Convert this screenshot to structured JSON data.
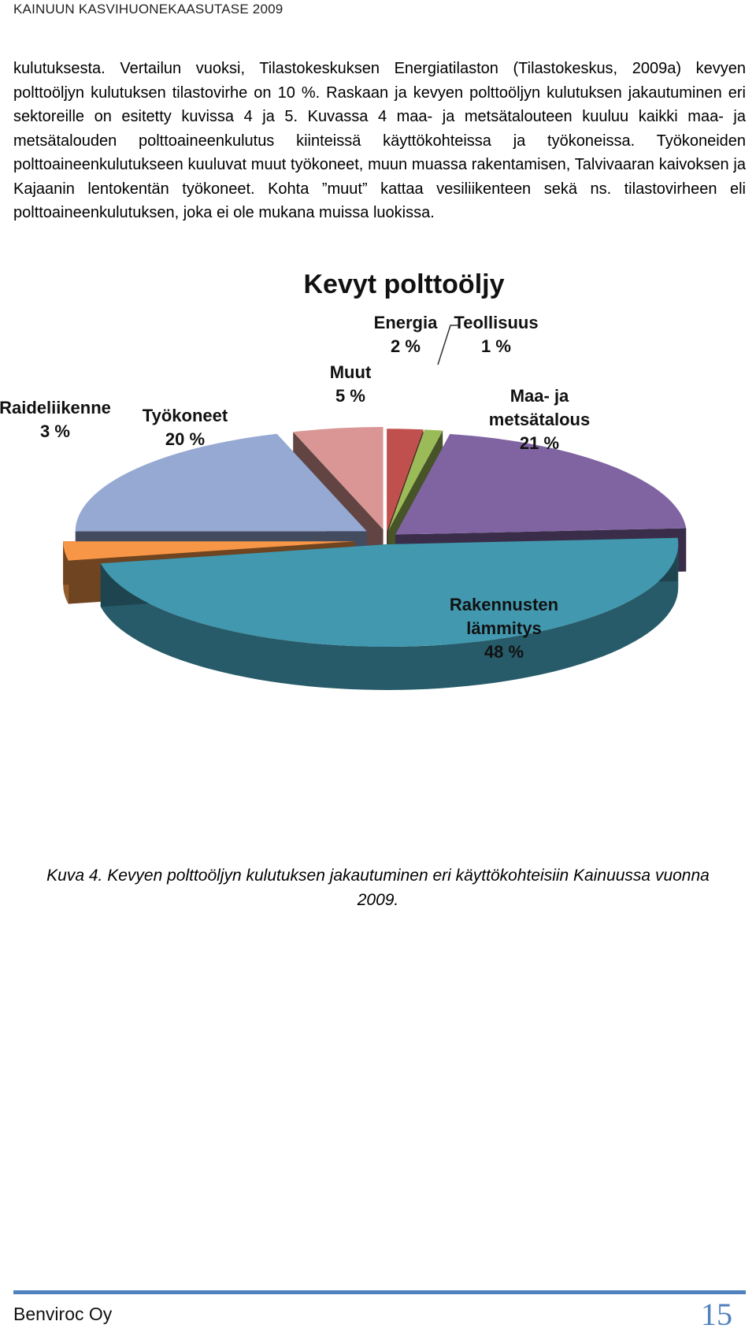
{
  "header": {
    "running_title": "KAINUUN KASVIHUONEKAASUTASE 2009"
  },
  "body": {
    "paragraph": "kulutuksesta. Vertailun vuoksi, Tilastokeskuksen Energiatilaston (Tilastokeskus, 2009a) kevyen polttoöljyn kulutuksen tilastovirhe on 10 %. Raskaan ja kevyen polttoöljyn kulutuksen jakautuminen eri sektoreille on esitetty kuvissa 4 ja 5. Kuvassa 4 maa- ja metsätalouteen kuuluu kaikki maa- ja metsätalouden polttoaineenkulutus kiinteissä käyttökohteissa ja työkoneissa. Työkoneiden polttoaineenkulutukseen kuuluvat muut työkoneet, muun muassa rakentamisen, Talvivaaran kaivoksen ja Kajaanin lentokentän työkoneet. Kohta ”muut” kattaa vesiliikenteen sekä ns. tilastovirheen eli polttoaineenkulutuksen, joka ei ole mukana muissa luokissa."
  },
  "chart_data": {
    "type": "pie",
    "title": "Kevyt polttoöljy",
    "slices": [
      {
        "label": "Energia",
        "value_label": "2 %",
        "value": 2,
        "color": "#c0504d"
      },
      {
        "label": "Teollisuus",
        "value_label": "1 %",
        "value": 1,
        "color": "#9bbb59"
      },
      {
        "label": "Maa- ja metsätalous",
        "label_lines": [
          "Maa- ja",
          "metsätalous"
        ],
        "value_label": "21 %",
        "value": 21,
        "color": "#8064a2"
      },
      {
        "label": "Rakennusten lämmitys",
        "label_lines": [
          "Rakennusten",
          "lämmitys"
        ],
        "value_label": "48 %",
        "value": 48,
        "color": "#4198af"
      },
      {
        "label": "Raideliikenne",
        "value_label": "3 %",
        "value": 3,
        "color": "#f79646"
      },
      {
        "label": "Työkoneet",
        "value_label": "20 %",
        "value": 20,
        "color": "#95a9d3"
      },
      {
        "label": "Muut",
        "value_label": "5 %",
        "value": 5,
        "color": "#d99694"
      }
    ]
  },
  "caption": {
    "text": "Kuva 4. Kevyen polttoöljyn kulutuksen jakautuminen eri käyttökohteisiin Kainuussa vuonna 2009."
  },
  "footer": {
    "company": "Benviroc Oy",
    "page_number": "15"
  }
}
